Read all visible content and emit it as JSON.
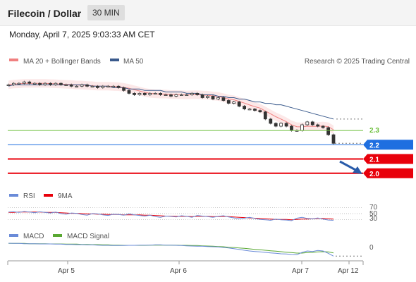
{
  "header": {
    "title": "Filecoin / Dollar",
    "interval": "30 MIN"
  },
  "datetime": "Monday, April 7, 2025 9:03:33 AM CET",
  "colors": {
    "bollinger": "#f08080",
    "ma50": "#3a5a8c",
    "support_red": "#e8000b",
    "current_blue": "#1f6fe0",
    "resistance_green": "#6bbf3a",
    "rsi": "#6a8bd8",
    "rsi_ma": "#e8000b",
    "macd": "#6a8bd8",
    "macd_signal": "#59a832",
    "arrow": "#2a5caa"
  },
  "chart_data": [
    {
      "type": "line",
      "title": "",
      "legend": [
        {
          "name": "MA 20 + Bollinger Bands",
          "color": "#f08080"
        },
        {
          "name": "MA 50",
          "color": "#3a5a8c"
        }
      ],
      "credit": "Research © 2025 Trading Central",
      "x_ticks": [
        "Apr 5",
        "Apr 6",
        "Apr 7",
        "Apr 12"
      ],
      "ylim": [
        1.92,
        2.72
      ],
      "levels": [
        {
          "value": 2.3,
          "label": "2.3",
          "color": "#6bbf3a",
          "kind": "resistance"
        },
        {
          "value": 2.2,
          "label": "2.2",
          "color": "#1f6fe0",
          "kind": "current"
        },
        {
          "value": 2.1,
          "label": "2.1",
          "color": "#e8000b",
          "kind": "support"
        },
        {
          "value": 2.0,
          "label": "2.0",
          "color": "#e8000b",
          "kind": "support"
        }
      ],
      "series": [
        {
          "name": "Price",
          "values": [
            2.62,
            2.63,
            2.63,
            2.64,
            2.63,
            2.63,
            2.62,
            2.63,
            2.62,
            2.63,
            2.62,
            2.62,
            2.61,
            2.61,
            2.62,
            2.61,
            2.61,
            2.6,
            2.61,
            2.61,
            2.61,
            2.6,
            2.58,
            2.56,
            2.55,
            2.56,
            2.55,
            2.56,
            2.56,
            2.55,
            2.55,
            2.54,
            2.55,
            2.55,
            2.55,
            2.56,
            2.55,
            2.53,
            2.54,
            2.52,
            2.53,
            2.51,
            2.49,
            2.5,
            2.47,
            2.45,
            2.45,
            2.44,
            2.43,
            2.38,
            2.35,
            2.33,
            2.35,
            2.33,
            2.3,
            2.3,
            2.34,
            2.36,
            2.34,
            2.33,
            2.32,
            2.27,
            2.21
          ]
        },
        {
          "name": "MA 50",
          "values": [
            2.61,
            2.62,
            2.62,
            2.62,
            2.62,
            2.62,
            2.62,
            2.62,
            2.62,
            2.62,
            2.62,
            2.62,
            2.62,
            2.62,
            2.62,
            2.62,
            2.61,
            2.61,
            2.61,
            2.61,
            2.6,
            2.6,
            2.6,
            2.59,
            2.59,
            2.59,
            2.58,
            2.58,
            2.58,
            2.58,
            2.57,
            2.57,
            2.57,
            2.57,
            2.56,
            2.56,
            2.56,
            2.55,
            2.55,
            2.55,
            2.54,
            2.54,
            2.53,
            2.53,
            2.52,
            2.52,
            2.51,
            2.5,
            2.5,
            2.49,
            2.49,
            2.48,
            2.48,
            2.47,
            2.46,
            2.45,
            2.44,
            2.43,
            2.42,
            2.41,
            2.4,
            2.39,
            2.38
          ]
        }
      ]
    },
    {
      "type": "line",
      "legend": [
        {
          "name": "RSI",
          "color": "#6a8bd8"
        },
        {
          "name": "9MA",
          "color": "#e8000b"
        }
      ],
      "y_ticks": [
        "70",
        "50",
        "30"
      ],
      "ylim": [
        20,
        80
      ],
      "series": [
        {
          "name": "RSI",
          "values": [
            55,
            56,
            54,
            57,
            55,
            53,
            56,
            54,
            52,
            55,
            50,
            48,
            52,
            51,
            47,
            45,
            50,
            49,
            46,
            44,
            48,
            47,
            45,
            49,
            46,
            44,
            42,
            45,
            40,
            38,
            42,
            41,
            39,
            43,
            41,
            38,
            44,
            42,
            40,
            38,
            41,
            43,
            39,
            36,
            33,
            35,
            38,
            34,
            31,
            30,
            28,
            32,
            30,
            29,
            27,
            35,
            38,
            34,
            33,
            36,
            32,
            29,
            28
          ]
        },
        {
          "name": "9MA",
          "values": [
            54,
            54,
            55,
            55,
            55,
            55,
            55,
            54,
            54,
            54,
            53,
            52,
            51,
            51,
            50,
            49,
            49,
            48,
            48,
            47,
            47,
            47,
            46,
            46,
            46,
            46,
            45,
            45,
            44,
            43,
            42,
            42,
            41,
            41,
            41,
            40,
            41,
            41,
            41,
            40,
            40,
            41,
            40,
            39,
            38,
            37,
            36,
            35,
            34,
            33,
            32,
            31,
            31,
            31,
            30,
            31,
            32,
            32,
            33,
            34,
            34,
            33,
            32
          ]
        }
      ]
    },
    {
      "type": "line",
      "legend": [
        {
          "name": "MACD",
          "color": "#6a8bd8"
        },
        {
          "name": "MACD Signal",
          "color": "#59a832"
        }
      ],
      "y_ticks": [
        "0"
      ],
      "ylim": [
        -0.07,
        0.02
      ],
      "series": [
        {
          "name": "MACD",
          "values": [
            0.005,
            0.004,
            0.004,
            0.003,
            0.003,
            0.003,
            0.002,
            0.002,
            0.002,
            0.001,
            0.001,
            0.0,
            0.0,
            -0.001,
            -0.001,
            -0.002,
            -0.002,
            -0.003,
            -0.004,
            -0.004,
            -0.005,
            -0.005,
            -0.005,
            -0.004,
            -0.004,
            -0.003,
            -0.003,
            -0.003,
            -0.002,
            -0.002,
            -0.003,
            -0.003,
            -0.004,
            -0.005,
            -0.006,
            -0.007,
            -0.008,
            -0.008,
            -0.009,
            -0.01,
            -0.011,
            -0.013,
            -0.015,
            -0.018,
            -0.021,
            -0.025,
            -0.028,
            -0.03,
            -0.032,
            -0.034,
            -0.036,
            -0.038,
            -0.04,
            -0.041,
            -0.043,
            -0.044,
            -0.034,
            -0.028,
            -0.03,
            -0.026,
            -0.028,
            -0.038,
            -0.05
          ]
        },
        {
          "name": "MACD Signal",
          "values": [
            0.004,
            0.004,
            0.004,
            0.004,
            0.003,
            0.003,
            0.003,
            0.003,
            0.002,
            0.002,
            0.002,
            0.001,
            0.001,
            0.001,
            0.0,
            0.0,
            -0.001,
            -0.001,
            -0.002,
            -0.002,
            -0.003,
            -0.003,
            -0.004,
            -0.004,
            -0.004,
            -0.004,
            -0.004,
            -0.003,
            -0.003,
            -0.003,
            -0.003,
            -0.003,
            -0.003,
            -0.004,
            -0.004,
            -0.005,
            -0.005,
            -0.006,
            -0.007,
            -0.008,
            -0.009,
            -0.01,
            -0.012,
            -0.013,
            -0.015,
            -0.017,
            -0.019,
            -0.021,
            -0.023,
            -0.025,
            -0.027,
            -0.029,
            -0.031,
            -0.033,
            -0.035,
            -0.037,
            -0.037,
            -0.035,
            -0.034,
            -0.032,
            -0.031,
            -0.032,
            -0.036
          ]
        }
      ]
    }
  ]
}
